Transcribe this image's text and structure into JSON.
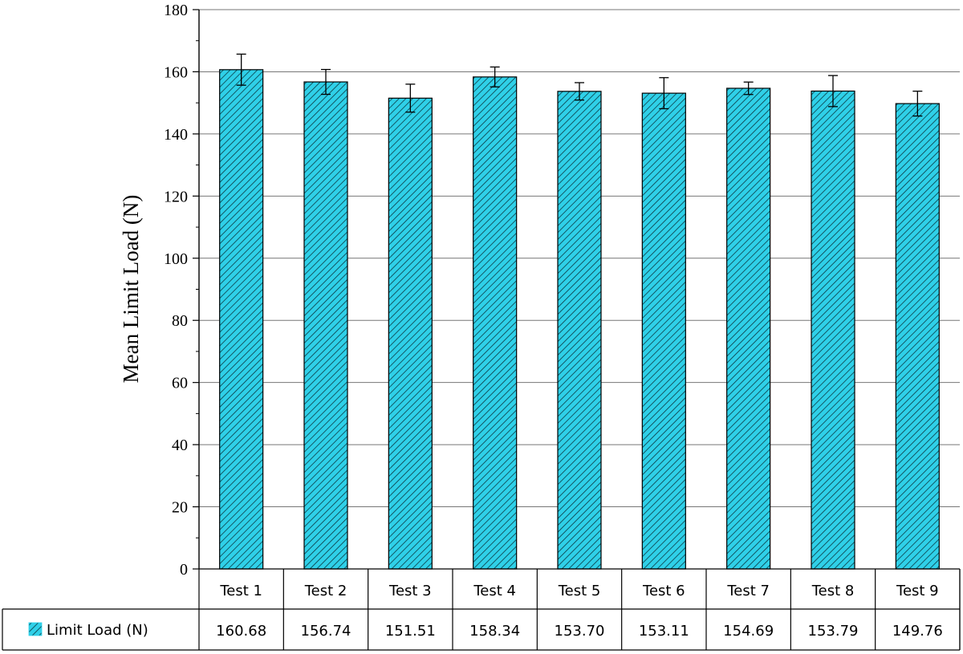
{
  "chart_data": {
    "type": "bar",
    "categories": [
      "Test 1",
      "Test 2",
      "Test 3",
      "Test 4",
      "Test 5",
      "Test 6",
      "Test 7",
      "Test 8",
      "Test 9"
    ],
    "series": [
      {
        "name": "Limit Load (N)",
        "values": [
          160.68,
          156.74,
          151.51,
          158.34,
          153.7,
          153.11,
          154.69,
          153.79,
          149.76
        ],
        "value_labels": [
          "160.68",
          "156.74",
          "151.51",
          "158.34",
          "153.70",
          "153.11",
          "154.69",
          "153.79",
          "149.76"
        ],
        "errors": [
          5,
          4,
          4.5,
          3.2,
          2.8,
          5,
          2,
          5,
          4
        ],
        "color": "#2fd0e8",
        "pattern": "diagonal-hatch"
      }
    ],
    "ylabel": "Mean Limit Load (N)",
    "xlabel": "",
    "ylim": [
      0,
      180
    ],
    "yticks": [
      "0",
      "20",
      "40",
      "60",
      "80",
      "100",
      "120",
      "140",
      "160",
      "180"
    ],
    "grid": "horizontal",
    "legend": "data-table-bottom"
  }
}
